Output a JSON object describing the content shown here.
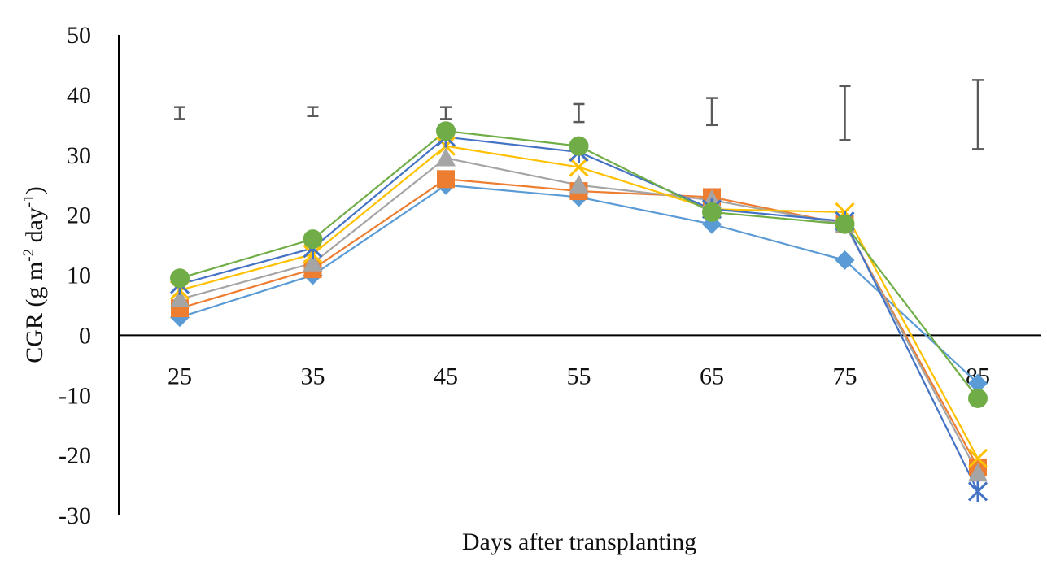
{
  "chart_data": {
    "type": "line",
    "xlabel": "Days after transplanting",
    "ylabel": "CGR  (g m",
    "ylabel_sup1": "-2",
    "ylabel_mid": " day",
    "ylabel_sup2": "-1",
    "ylabel_end": ")",
    "categories": [
      "25",
      "35",
      "45",
      "55",
      "65",
      "75",
      "85"
    ],
    "ylim": [
      -30,
      50
    ],
    "yticks": [
      -30,
      -20,
      -10,
      0,
      10,
      20,
      30,
      40,
      50
    ],
    "grid": false,
    "series": [
      {
        "values": [
          3,
          10,
          25,
          23,
          18.5,
          12.5,
          -8
        ],
        "color": "#5b9bd5",
        "marker": "diamond"
      },
      {
        "values": [
          4.5,
          11,
          26,
          24,
          23,
          18.5,
          -22
        ],
        "color": "#ed7d31",
        "marker": "square"
      },
      {
        "values": [
          6,
          12,
          29.5,
          25,
          22.5,
          18.5,
          -23
        ],
        "color": "#a5a5a5",
        "marker": "triangle"
      },
      {
        "values": [
          7.5,
          13.5,
          31.5,
          28,
          21,
          20.5,
          -20.5
        ],
        "color": "#ffc000",
        "marker": "x"
      },
      {
        "values": [
          8.5,
          14.5,
          33,
          30.5,
          21,
          19,
          -26
        ],
        "color": "#4472c4",
        "marker": "star"
      },
      {
        "values": [
          9.5,
          16,
          34,
          31.5,
          20.5,
          18.5,
          -10.5
        ],
        "color": "#70ad47",
        "marker": "circle"
      }
    ],
    "error_bars": [
      {
        "category": "25",
        "low": 36,
        "high": 38
      },
      {
        "category": "35",
        "low": 36.5,
        "high": 38
      },
      {
        "category": "45",
        "low": 36,
        "high": 38
      },
      {
        "category": "55",
        "low": 35.5,
        "high": 38.5
      },
      {
        "category": "65",
        "low": 35,
        "high": 39.5
      },
      {
        "category": "75",
        "low": 32.5,
        "high": 41.5
      },
      {
        "category": "85",
        "low": 31,
        "high": 42.5
      }
    ],
    "error_bar_color": "#595959"
  }
}
